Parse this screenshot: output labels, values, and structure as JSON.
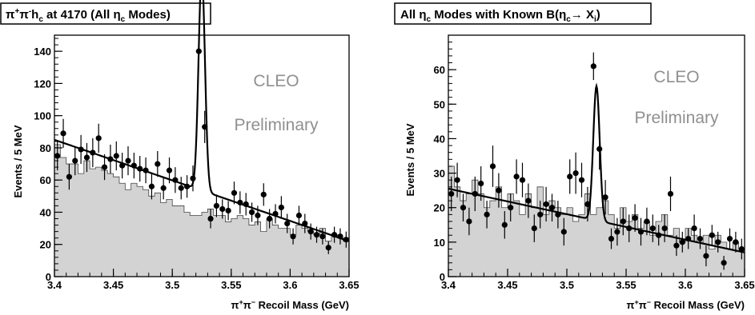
{
  "colors": {
    "histogram_fill": "#d3d3d3",
    "watermark": "#909090",
    "curve": "#000000"
  },
  "chart_data": [
    {
      "type": "histogram+scatter",
      "title": "π⁺π⁻h_c at 4170 (All η_c Modes)",
      "title_parts": {
        "a": "π",
        "a_sup": "+",
        "b": "π",
        "b_sup": "-",
        "c": "h",
        "c_sub": "c",
        "d": " at 4170 (All ",
        "e": "η",
        "e_sub": "c",
        "f": " Modes)"
      },
      "xlabel": "π⁺π⁻ Recoil Mass (GeV)",
      "xlabel_parts": {
        "a": "π",
        "a_sup": "+",
        "b": "π",
        "b_sup": "−",
        "c": " Recoil Mass  (GeV)"
      },
      "ylabel": "Events / 5 MeV",
      "xlim": [
        3.4,
        3.65
      ],
      "ylim": [
        0,
        150
      ],
      "x_ticks": [
        "3.4",
        "3.45",
        "3.5",
        "3.55",
        "3.6",
        "3.65"
      ],
      "x_tick_values": [
        3.4,
        3.45,
        3.5,
        3.55,
        3.6,
        3.65
      ],
      "y_ticks": [
        "0",
        "20",
        "40",
        "60",
        "80",
        "100",
        "120",
        "140"
      ],
      "y_tick_values": [
        0,
        20,
        40,
        60,
        80,
        100,
        120,
        140
      ],
      "watermark": [
        "CLEO",
        "Preliminary"
      ],
      "background_histogram": {
        "bin_width": 0.005,
        "x_start": 3.4,
        "values": [
          82,
          74,
          70,
          70,
          64,
          72,
          67,
          68,
          66,
          64,
          62,
          58,
          54,
          58,
          56,
          54,
          50,
          52,
          46,
          48,
          44,
          44,
          40,
          38,
          38,
          40,
          42,
          38,
          38,
          34,
          36,
          38,
          36,
          32,
          34,
          28,
          36,
          32,
          30,
          30,
          26,
          32,
          30,
          28,
          26,
          30,
          22,
          26,
          24,
          22
        ]
      },
      "data_points": {
        "x": [
          3.4025,
          3.4075,
          3.4125,
          3.4175,
          3.4225,
          3.4275,
          3.4325,
          3.4375,
          3.4425,
          3.4475,
          3.4525,
          3.4575,
          3.4625,
          3.4675,
          3.4725,
          3.4775,
          3.4825,
          3.4875,
          3.4925,
          3.4975,
          3.5025,
          3.5075,
          3.5125,
          3.5175,
          3.5225,
          3.5275,
          3.5325,
          3.5375,
          3.5425,
          3.5475,
          3.5525,
          3.5575,
          3.5625,
          3.5675,
          3.5725,
          3.5775,
          3.5825,
          3.5875,
          3.5925,
          3.5975,
          3.6025,
          3.6075,
          3.6125,
          3.6175,
          3.6225,
          3.6275,
          3.6325,
          3.6375,
          3.6425,
          3.6475
        ],
        "y": [
          75,
          89,
          62,
          72,
          79,
          74,
          77,
          86,
          68,
          73,
          75,
          69,
          72,
          69,
          67,
          66,
          56,
          70,
          55,
          66,
          60,
          55,
          56,
          61,
          140,
          93,
          36,
          44,
          42,
          41,
          52,
          46,
          45,
          40,
          38,
          51,
          36,
          39,
          43,
          33,
          25,
          38,
          33,
          28,
          26,
          25,
          18,
          26,
          25,
          23
        ],
        "yerr": [
          9,
          9,
          8,
          9,
          9,
          9,
          9,
          9,
          8,
          9,
          9,
          8,
          9,
          8,
          8,
          8,
          8,
          8,
          7,
          8,
          8,
          7,
          7,
          8,
          6,
          10,
          6,
          7,
          6,
          6,
          7,
          7,
          7,
          6,
          6,
          7,
          6,
          6,
          7,
          6,
          5,
          6,
          6,
          5,
          5,
          5,
          4,
          5,
          5,
          5
        ]
      },
      "fit": {
        "background_line": [
          [
            3.4,
            85
          ],
          [
            3.65,
            22
          ]
        ],
        "peak_center": 3.525,
        "peak_height": 135,
        "peak_sigma": 0.0027
      }
    },
    {
      "type": "histogram+scatter",
      "title": "All η_c Modes with Known B(η_c → X_i)",
      "title_parts": {
        "a": "All ",
        "b": "η",
        "b_sub": "c",
        "c": " Modes with Known B(",
        "d": "η",
        "d_sub": "c",
        "e": "→ X",
        "e_sub": "i",
        "f": ")"
      },
      "xlabel": "π⁺π⁻ Recoil Mass (GeV)",
      "xlabel_parts": {
        "a": "π",
        "a_sup": "+",
        "b": "π",
        "b_sup": "−",
        "c": " Recoil Mass  (GeV)"
      },
      "ylabel": "Events / 5 MeV",
      "xlim": [
        3.4,
        3.65
      ],
      "ylim": [
        0,
        70
      ],
      "x_ticks": [
        "3.4",
        "3.45",
        "3.5",
        "3.55",
        "3.6",
        "3.65"
      ],
      "x_tick_values": [
        3.4,
        3.45,
        3.5,
        3.55,
        3.6,
        3.65
      ],
      "y_ticks": [
        "0",
        "10",
        "20",
        "30",
        "40",
        "50",
        "60"
      ],
      "y_tick_values": [
        0,
        10,
        20,
        30,
        40,
        50,
        60
      ],
      "watermark": [
        "CLEO",
        "Preliminary"
      ],
      "background_histogram": {
        "bin_width": 0.005,
        "x_start": 3.4,
        "values": [
          32,
          26,
          22,
          24,
          28,
          24,
          20,
          22,
          26,
          20,
          24,
          22,
          18,
          24,
          20,
          26,
          18,
          22,
          20,
          18,
          20,
          16,
          18,
          24,
          18,
          20,
          22,
          18,
          14,
          20,
          16,
          18,
          14,
          16,
          12,
          16,
          18,
          12,
          14,
          10,
          14,
          12,
          10,
          12,
          8,
          12,
          10,
          8,
          10,
          8
        ]
      },
      "data_points": {
        "x": [
          3.4025,
          3.4075,
          3.4125,
          3.4175,
          3.4225,
          3.4275,
          3.4325,
          3.4375,
          3.4425,
          3.4475,
          3.4525,
          3.4575,
          3.4625,
          3.4675,
          3.4725,
          3.4775,
          3.4825,
          3.4875,
          3.4925,
          3.4975,
          3.5025,
          3.5075,
          3.5125,
          3.5175,
          3.5225,
          3.5275,
          3.5325,
          3.5375,
          3.5425,
          3.5475,
          3.5525,
          3.5575,
          3.5625,
          3.5675,
          3.5725,
          3.5775,
          3.5825,
          3.5875,
          3.5925,
          3.5975,
          3.6025,
          3.6075,
          3.6125,
          3.6175,
          3.6225,
          3.6275,
          3.6325,
          3.6375,
          3.6425,
          3.6475
        ],
        "y": [
          24,
          28,
          20,
          16,
          24,
          27,
          18,
          32,
          25,
          15,
          20,
          29,
          28,
          22,
          14,
          18,
          21,
          20,
          18,
          13,
          29,
          30,
          28,
          21,
          61,
          37,
          23,
          11,
          13,
          16,
          14,
          17,
          13,
          16,
          14,
          12,
          14,
          24,
          9,
          10,
          11,
          14,
          11,
          6,
          12,
          10,
          4,
          11,
          10,
          8
        ],
        "yerr": [
          5,
          5,
          4,
          4,
          5,
          5,
          4,
          6,
          5,
          4,
          4,
          5,
          5,
          5,
          4,
          4,
          5,
          4,
          4,
          4,
          5,
          6,
          5,
          5,
          4,
          6,
          5,
          3,
          4,
          4,
          4,
          4,
          4,
          4,
          4,
          3,
          4,
          5,
          3,
          3,
          3,
          4,
          3,
          3,
          3,
          3,
          2,
          3,
          3,
          3
        ]
      },
      "fit": {
        "background_line": [
          [
            3.4,
            25.5
          ],
          [
            3.65,
            7
          ]
        ],
        "peak_center": 3.525,
        "peak_height": 39,
        "peak_sigma": 0.0027
      }
    }
  ]
}
